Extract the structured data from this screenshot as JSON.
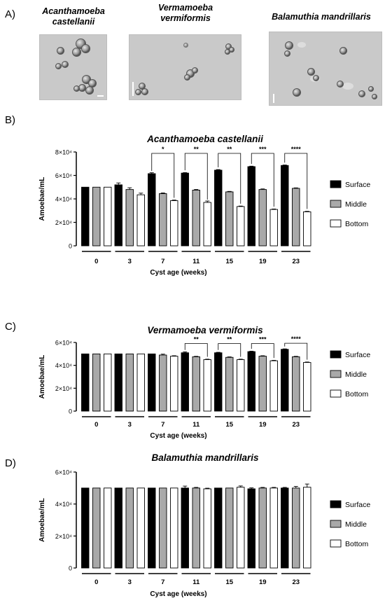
{
  "panels": [
    {
      "letter": "A)"
    },
    {
      "letter": "B)"
    },
    {
      "letter": "C)"
    },
    {
      "letter": "D)"
    }
  ],
  "micrographs": [
    {
      "title_line1": "Acanthamoeba",
      "title_line2": "castellanii"
    },
    {
      "title_line1": "Vermamoeba",
      "title_line2": "vermiformis"
    },
    {
      "title_line1": "Balamuthia mandrillaris",
      "title_line2": ""
    }
  ],
  "chart_data": [
    {
      "type": "bar",
      "title": "Acanthamoeba castellanii",
      "ylabel": "Amoebae/mL",
      "xlabel": "Cyst age (weeks)",
      "categories": [
        "0",
        "3",
        "7",
        "11",
        "15",
        "19",
        "23"
      ],
      "ylim": [
        0,
        80000
      ],
      "yticks": [
        0,
        20000,
        40000,
        60000,
        80000
      ],
      "ytick_labels": [
        "0",
        "2×10⁴",
        "4×10⁴",
        "6×10⁴",
        "8×10⁴"
      ],
      "series": [
        {
          "name": "Surface",
          "color": "#000000",
          "values": [
            50000,
            52000,
            61500,
            62000,
            64500,
            67500,
            68500
          ],
          "errors": [
            0,
            1600,
            800,
            400,
            500,
            400,
            400
          ]
        },
        {
          "name": "Middle",
          "color": "#a9a9a9",
          "values": [
            50000,
            48000,
            44500,
            47500,
            46000,
            48000,
            49000
          ],
          "errors": [
            0,
            1500,
            600,
            500,
            400,
            500,
            400
          ]
        },
        {
          "name": "Bottom",
          "color": "#ffffff",
          "values": [
            50000,
            43500,
            38500,
            37000,
            33500,
            31000,
            29000
          ],
          "errors": [
            0,
            1400,
            500,
            1200,
            400,
            400,
            400
          ]
        }
      ],
      "significance": [
        {
          "category": "7",
          "label": "*"
        },
        {
          "category": "11",
          "label": "**"
        },
        {
          "category": "15",
          "label": "**"
        },
        {
          "category": "19",
          "label": "***"
        },
        {
          "category": "23",
          "label": "****"
        }
      ],
      "legend": "right"
    },
    {
      "type": "bar",
      "title": "Vermamoeba vermiformis",
      "ylabel": "Amoebae/mL",
      "xlabel": "Cyst age (weeks)",
      "categories": [
        "0",
        "3",
        "7",
        "11",
        "15",
        "19",
        "23"
      ],
      "ylim": [
        0,
        60000
      ],
      "yticks": [
        0,
        20000,
        40000,
        60000
      ],
      "ytick_labels": [
        "0",
        "2×10⁴",
        "4×10⁴",
        "6×10⁴"
      ],
      "series": [
        {
          "name": "Surface",
          "color": "#000000",
          "values": [
            50000,
            50000,
            50000,
            51000,
            51000,
            52000,
            54000
          ],
          "errors": [
            0,
            0,
            0,
            800,
            400,
            400,
            400
          ]
        },
        {
          "name": "Middle",
          "color": "#a9a9a9",
          "values": [
            50000,
            50000,
            49000,
            47500,
            47000,
            48000,
            47500
          ],
          "errors": [
            0,
            0,
            800,
            400,
            400,
            400,
            400
          ]
        },
        {
          "name": "Bottom",
          "color": "#ffffff",
          "values": [
            50000,
            50000,
            48000,
            45000,
            45000,
            44000,
            42500
          ],
          "errors": [
            0,
            0,
            400,
            400,
            400,
            400,
            400
          ]
        }
      ],
      "significance": [
        {
          "category": "11",
          "label": "**"
        },
        {
          "category": "15",
          "label": "**"
        },
        {
          "category": "19",
          "label": "***"
        },
        {
          "category": "23",
          "label": "****"
        }
      ],
      "legend": "right"
    },
    {
      "type": "bar",
      "title": "Balamuthia mandrillaris",
      "ylabel": "Amoebae/mL",
      "xlabel": "Cyst age (weeks)",
      "categories": [
        "0",
        "3",
        "7",
        "11",
        "15",
        "19",
        "23"
      ],
      "ylim": [
        0,
        60000
      ],
      "yticks": [
        0,
        20000,
        40000,
        60000
      ],
      "ytick_labels": [
        "0",
        "2×10⁴",
        "4×10⁴",
        "6×10⁴"
      ],
      "series": [
        {
          "name": "Surface",
          "color": "#000000",
          "values": [
            50000,
            50000,
            50000,
            50000,
            50000,
            49500,
            50000
          ],
          "errors": [
            0,
            0,
            0,
            1200,
            0,
            600,
            400
          ]
        },
        {
          "name": "Middle",
          "color": "#a9a9a9",
          "values": [
            50000,
            50000,
            50000,
            50000,
            50000,
            50000,
            50000
          ],
          "errors": [
            0,
            0,
            0,
            400,
            0,
            400,
            1000
          ]
        },
        {
          "name": "Bottom",
          "color": "#ffffff",
          "values": [
            50000,
            50000,
            50000,
            49500,
            50500,
            50000,
            50500
          ],
          "errors": [
            0,
            0,
            0,
            400,
            800,
            400,
            2000
          ]
        }
      ],
      "significance": [],
      "legend": "right"
    }
  ]
}
